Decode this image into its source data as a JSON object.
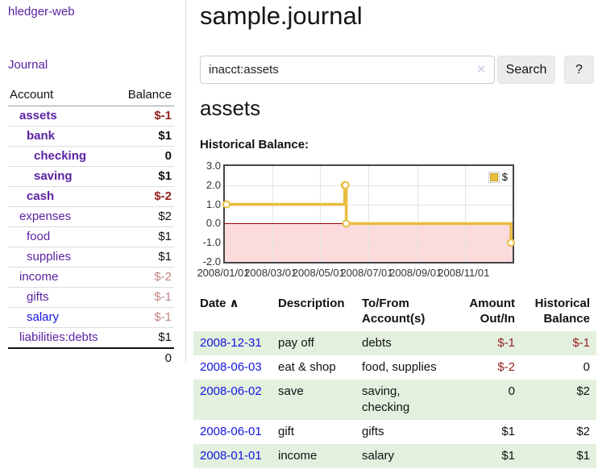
{
  "brand": {
    "label": "hledger-web"
  },
  "nav": {
    "journal_label": "Journal"
  },
  "sidebar": {
    "account_header": "Account",
    "balance_header": "Balance",
    "rows": [
      {
        "account": "assets",
        "balance": "$-1",
        "level": 1,
        "emphasis": true
      },
      {
        "account": "bank",
        "balance": "$1",
        "level": 2,
        "emphasis": true
      },
      {
        "account": "checking",
        "balance": "0",
        "level": 3,
        "emphasis": true
      },
      {
        "account": "saving",
        "balance": "$1",
        "level": 3,
        "emphasis": true
      },
      {
        "account": "cash",
        "balance": "$-2",
        "level": 2,
        "emphasis": true
      },
      {
        "account": "expenses",
        "balance": "$2",
        "level": 1,
        "emphasis": false
      },
      {
        "account": "food",
        "balance": "$1",
        "level": 2,
        "emphasis": false
      },
      {
        "account": "supplies",
        "balance": "$1",
        "level": 2,
        "emphasis": false
      },
      {
        "account": "income",
        "balance": "$-2",
        "level": 1,
        "emphasis": false
      },
      {
        "account": "gifts",
        "balance": "$-1",
        "level": 2,
        "emphasis": false
      },
      {
        "account": "salary",
        "balance": "$-1",
        "level": 2,
        "emphasis": false,
        "link_style": "blue"
      },
      {
        "account": "liabilities:debts",
        "balance": "$1",
        "level": 1,
        "emphasis": false
      }
    ],
    "total": "0"
  },
  "header": {
    "title": "sample.journal"
  },
  "search": {
    "value": "inacct:assets",
    "clear_icon": "×",
    "search_button": "Search",
    "help_button": "?"
  },
  "account_page": {
    "title": "assets",
    "chart_label": "Historical Balance:"
  },
  "chart_data": {
    "type": "line",
    "step": true,
    "title": "Historical Balance:",
    "series": [
      {
        "name": "$",
        "color": "#e8bd3f",
        "x": [
          "2008-01-01",
          "2008-06-01",
          "2008-06-02",
          "2008-06-03",
          "2008-12-31"
        ],
        "values": [
          1,
          2,
          2,
          0,
          -1
        ]
      }
    ],
    "ylim": [
      -2,
      3
    ],
    "ytick_labels": [
      "3.0",
      "2.0",
      "1.0",
      "0.0",
      "-1.0",
      "-2.0"
    ],
    "xtick_labels": [
      "2008/01/01",
      "2008/03/01",
      "2008/05/01",
      "2008/07/01",
      "2008/09/01",
      "2008/11/01"
    ],
    "xrange": [
      "2008-01-01",
      "2008-12-31"
    ],
    "grid": true,
    "legend_position": "top-right",
    "negative_region_color": "#fbdbdb",
    "zero_line_color": "#a00000"
  },
  "register": {
    "sort_icon": "∧",
    "columns": [
      "Date",
      "Description",
      "To/From\nAccount(s)",
      "Amount\nOut/In",
      "Historical\nBalance"
    ],
    "rows": [
      {
        "date": "2008-12-31",
        "description": "pay off",
        "accounts": "debts",
        "amount": "$-1",
        "balance": "$-1"
      },
      {
        "date": "2008-06-03",
        "description": "eat & shop",
        "accounts": "food, supplies",
        "amount": "$-2",
        "balance": "0"
      },
      {
        "date": "2008-06-02",
        "description": "save",
        "accounts": "saving,\nchecking",
        "amount": "0",
        "balance": "$2"
      },
      {
        "date": "2008-06-01",
        "description": "gift",
        "accounts": "gifts",
        "amount": "$1",
        "balance": "$2"
      },
      {
        "date": "2008-01-01",
        "description": "income",
        "accounts": "salary",
        "amount": "$1",
        "balance": "$1"
      }
    ]
  },
  "colors": {
    "accent_purple": "#5b22a2",
    "link_blue": "#1414e0",
    "negative_strong": "#941f1f",
    "negative_muted": "#c28585",
    "row_green": "#e3f0de",
    "chart_gold": "#e8bd3f"
  }
}
